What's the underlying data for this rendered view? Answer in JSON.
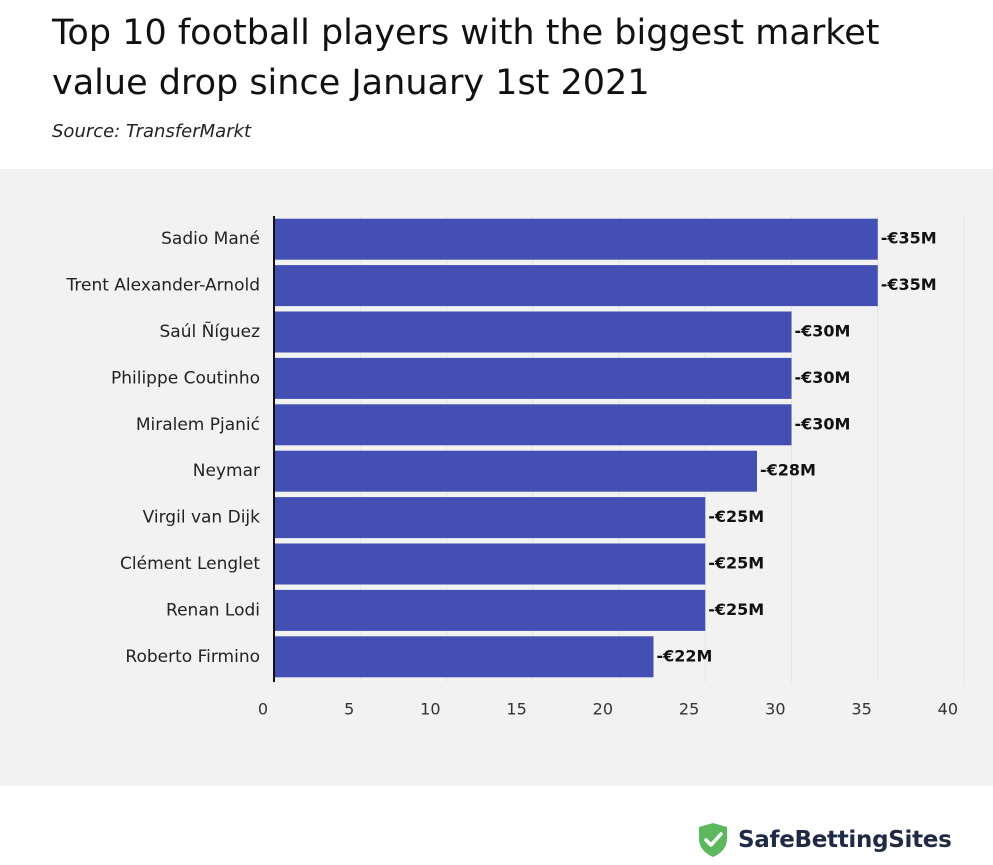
{
  "title": "Top 10 football players with the biggest market value drop since January 1st 2021",
  "source": "Source: TransferMarkt",
  "brand": {
    "name": "SafeBettingSites",
    "icon": "shield-check-icon",
    "color": "#5cb85c"
  },
  "colors": {
    "bar": "#434fb3",
    "panel": "#f2f2f2",
    "grid": "#e4e4e4"
  },
  "chart_data": {
    "type": "bar",
    "orientation": "horizontal",
    "categories": [
      "Sadio Mané",
      "Trent Alexander-Arnold",
      "Saúl Ñíguez",
      "Philippe Coutinho",
      "Miralem Pjanić",
      "Neymar",
      "Virgil van Dijk",
      "Clément Lenglet",
      "Renan Lodi",
      "Roberto Firmino"
    ],
    "values": [
      35,
      35,
      30,
      30,
      30,
      28,
      25,
      25,
      25,
      22
    ],
    "data_labels": [
      "-€35M",
      "-€35M",
      "-€30M",
      "-€30M",
      "-€30M",
      "-€28M",
      "-€25M",
      "-€25M",
      "-€25M",
      "-€22M"
    ],
    "xlim": [
      0,
      40
    ],
    "xticks": [
      "0",
      "5",
      "10",
      "15",
      "20",
      "25",
      "30",
      "35",
      "40"
    ],
    "grid": true
  }
}
